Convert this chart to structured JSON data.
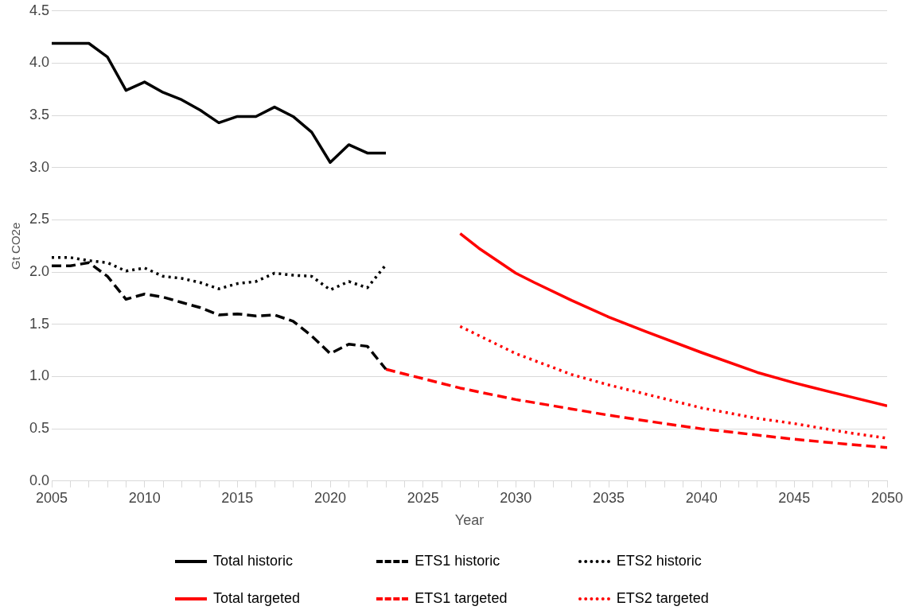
{
  "chart_data": {
    "type": "line",
    "xlabel": "Year",
    "ylabel": "Gt CO2e",
    "xlim": [
      2005,
      2050
    ],
    "ylim": [
      0,
      4.5
    ],
    "xticks": [
      2005,
      {
        "value": 2006,
        "label": null
      },
      {
        "value": 2007,
        "label": null
      },
      {
        "value": 2008,
        "label": null
      },
      {
        "value": 2009,
        "label": null
      },
      2010,
      {
        "value": 2011,
        "label": null
      },
      {
        "value": 2012,
        "label": null
      },
      {
        "value": 2013,
        "label": null
      },
      {
        "value": 2014,
        "label": null
      },
      2015,
      {
        "value": 2016,
        "label": null
      },
      {
        "value": 2017,
        "label": null
      },
      {
        "value": 2018,
        "label": null
      },
      {
        "value": 2019,
        "label": null
      },
      2020,
      {
        "value": 2021,
        "label": null
      },
      {
        "value": 2022,
        "label": null
      },
      {
        "value": 2023,
        "label": null
      },
      {
        "value": 2024,
        "label": null
      },
      2025,
      {
        "value": 2026,
        "label": null
      },
      {
        "value": 2027,
        "label": null
      },
      {
        "value": 2028,
        "label": null
      },
      {
        "value": 2029,
        "label": null
      },
      2030,
      {
        "value": 2031,
        "label": null
      },
      {
        "value": 2032,
        "label": null
      },
      {
        "value": 2033,
        "label": null
      },
      {
        "value": 2034,
        "label": null
      },
      2035,
      {
        "value": 2036,
        "label": null
      },
      {
        "value": 2037,
        "label": null
      },
      {
        "value": 2038,
        "label": null
      },
      {
        "value": 2039,
        "label": null
      },
      2040,
      {
        "value": 2041,
        "label": null
      },
      {
        "value": 2042,
        "label": null
      },
      {
        "value": 2043,
        "label": null
      },
      {
        "value": 2044,
        "label": null
      },
      2045,
      {
        "value": 2046,
        "label": null
      },
      {
        "value": 2047,
        "label": null
      },
      {
        "value": 2048,
        "label": null
      },
      {
        "value": 2049,
        "label": null
      },
      2050
    ],
    "yticks": [
      {
        "value": 0,
        "label": "0.0"
      },
      0.5,
      {
        "value": 1,
        "label": "1.0"
      },
      1.5,
      {
        "value": 2,
        "label": "2.0"
      },
      2.5,
      {
        "value": 3,
        "label": "3.0"
      },
      3.5,
      {
        "value": 4,
        "label": "4.0"
      },
      4.5
    ],
    "grid": "y",
    "legend": "bottom",
    "marker": "none",
    "series": [
      {
        "name": "Total historic",
        "color": "#000000",
        "line_style": "solid",
        "x": [
          2005,
          2006,
          2007,
          2008,
          2009,
          2010,
          2011,
          2012,
          2013,
          2014,
          2015,
          2016,
          2017,
          2018,
          2019,
          2020,
          2021,
          2022,
          2023
        ],
        "values": [
          4.19,
          4.19,
          4.19,
          4.06,
          3.74,
          3.82,
          3.72,
          3.65,
          3.55,
          3.43,
          3.49,
          3.49,
          3.58,
          3.49,
          3.34,
          3.05,
          3.22,
          3.14,
          3.14
        ]
      },
      {
        "name": "ETS1 historic",
        "color": "#000000",
        "line_style": "dashed",
        "x": [
          2005,
          2006,
          2007,
          2008,
          2009,
          2010,
          2011,
          2012,
          2013,
          2014,
          2015,
          2016,
          2017,
          2018,
          2019,
          2020,
          2021,
          2022,
          2023
        ],
        "values": [
          2.06,
          2.06,
          2.09,
          1.96,
          1.74,
          1.79,
          1.76,
          1.71,
          1.66,
          1.59,
          1.6,
          1.58,
          1.59,
          1.53,
          1.39,
          1.22,
          1.31,
          1.29,
          1.07
        ]
      },
      {
        "name": "ETS2 historic",
        "color": "#000000",
        "line_style": "dotted",
        "x": [
          2005,
          2006,
          2007,
          2008,
          2009,
          2010,
          2011,
          2012,
          2013,
          2014,
          2015,
          2016,
          2017,
          2018,
          2019,
          2020,
          2021,
          2022,
          2023
        ],
        "values": [
          2.14,
          2.14,
          2.11,
          2.09,
          2.01,
          2.04,
          1.96,
          1.94,
          1.9,
          1.84,
          1.89,
          1.91,
          1.99,
          1.97,
          1.96,
          1.83,
          1.91,
          1.85,
          2.07
        ]
      },
      {
        "name": "Total targeted",
        "color": "#ff0000",
        "line_style": "solid",
        "x": [
          2027,
          2028,
          2029,
          2030,
          2031,
          2033,
          2035,
          2037,
          2040,
          2043,
          2045,
          2047,
          2050
        ],
        "values": [
          2.37,
          2.23,
          2.11,
          1.99,
          1.9,
          1.73,
          1.57,
          1.43,
          1.23,
          1.04,
          0.94,
          0.85,
          0.72
        ]
      },
      {
        "name": "ETS1 targeted",
        "color": "#ff0000",
        "line_style": "dashed",
        "x": [
          2023,
          2025,
          2027,
          2030,
          2033,
          2035,
          2038,
          2040,
          2043,
          2045,
          2048,
          2050
        ],
        "values": [
          1.07,
          0.98,
          0.89,
          0.78,
          0.69,
          0.63,
          0.55,
          0.5,
          0.44,
          0.4,
          0.35,
          0.32
        ]
      },
      {
        "name": "ETS2 targeted",
        "color": "#ff0000",
        "line_style": "dotted",
        "x": [
          2027,
          2030,
          2033,
          2035,
          2040,
          2043,
          2045,
          2048,
          2050
        ],
        "values": [
          1.48,
          1.22,
          1.02,
          0.92,
          0.7,
          0.6,
          0.55,
          0.46,
          0.41
        ]
      }
    ]
  }
}
